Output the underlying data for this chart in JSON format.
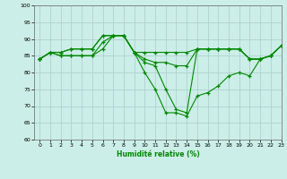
{
  "xlabel": "Humidité relative (%)",
  "xlim": [
    -0.5,
    23
  ],
  "ylim": [
    60,
    100
  ],
  "yticks": [
    60,
    65,
    70,
    75,
    80,
    85,
    90,
    95,
    100
  ],
  "xticks": [
    0,
    1,
    2,
    3,
    4,
    5,
    6,
    7,
    8,
    9,
    10,
    11,
    12,
    13,
    14,
    15,
    16,
    17,
    18,
    19,
    20,
    21,
    22,
    23
  ],
  "background_color": "#cceee8",
  "grid_color": "#aacccc",
  "line_color": "#008800",
  "lines": [
    [
      84,
      86,
      86,
      87,
      87,
      87,
      91,
      91,
      91,
      86,
      86,
      86,
      86,
      86,
      86,
      87,
      87,
      87,
      87,
      87,
      84,
      84,
      85,
      88
    ],
    [
      84,
      86,
      85,
      85,
      85,
      85,
      87,
      91,
      91,
      86,
      84,
      83,
      83,
      82,
      82,
      87,
      87,
      87,
      87,
      87,
      84,
      84,
      85,
      88
    ],
    [
      84,
      86,
      85,
      85,
      85,
      85,
      89,
      91,
      91,
      86,
      83,
      82,
      75,
      69,
      68,
      87,
      87,
      87,
      87,
      87,
      84,
      84,
      85,
      88
    ],
    [
      84,
      86,
      86,
      87,
      87,
      87,
      91,
      91,
      91,
      86,
      80,
      75,
      68,
      68,
      67,
      73,
      74,
      76,
      79,
      80,
      79,
      84,
      85,
      88
    ]
  ]
}
